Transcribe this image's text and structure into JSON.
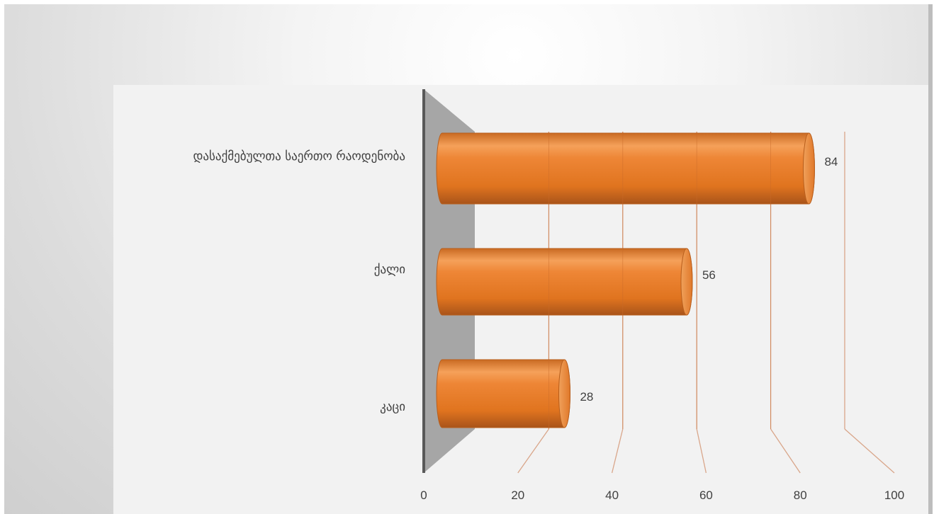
{
  "chart_data": {
    "type": "bar",
    "orientation": "horizontal",
    "style": "3d-cylinder",
    "categories": [
      "დასაქმებულთა საერთო რაოდენობა",
      "ქალი",
      "კაცი"
    ],
    "values": [
      84,
      56,
      28
    ],
    "data_labels": [
      "84",
      "56",
      "28"
    ],
    "xlim": [
      0,
      100
    ],
    "x_ticks": [
      "0",
      "20",
      "40",
      "60",
      "80",
      "100"
    ],
    "grid": true,
    "legend": "none",
    "colors": {
      "bar": "#ed7d31",
      "bar_dark": "#b85e1c",
      "bar_light": "#f6a462",
      "grid": "#d9a68a",
      "wall": "#a6a6a6",
      "wall_edge": "#595959"
    }
  }
}
